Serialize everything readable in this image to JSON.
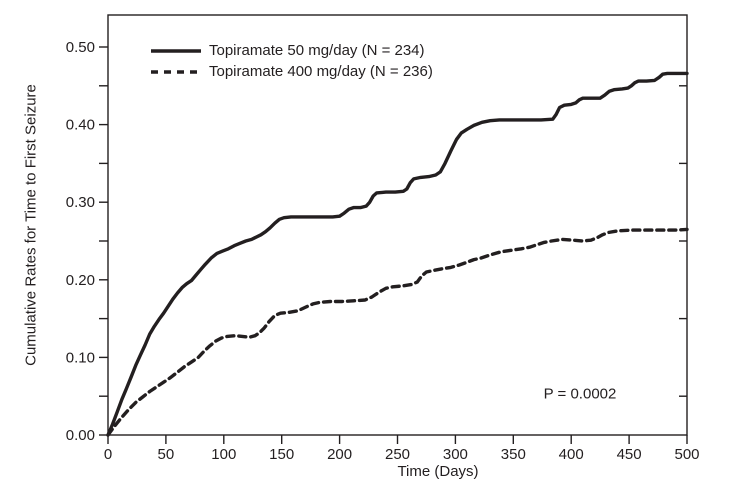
{
  "colors": {
    "ink": "#231f20",
    "background": "#ffffff"
  },
  "annotation": {
    "p_value": "P = 0.0002"
  },
  "chart_data": {
    "type": "line",
    "title": "",
    "xlabel": "Time (Days)",
    "ylabel": "Cumulative Rates for Time to First Seizure",
    "xlim": [
      0,
      500
    ],
    "ylim": [
      0.0,
      0.54
    ],
    "grid": false,
    "frame": true,
    "legend_position": "upper-left-inside",
    "x_ticks": [
      0,
      50,
      100,
      150,
      200,
      250,
      300,
      350,
      400,
      450,
      500
    ],
    "y_ticks_major": [
      0.0,
      0.1,
      0.2,
      0.3,
      0.4,
      0.5
    ],
    "y_ticks_minor": [
      0.05,
      0.15,
      0.25,
      0.35,
      0.45
    ],
    "y_ticks_right": [
      0.05,
      0.15,
      0.25,
      0.35,
      0.45
    ],
    "y_tick_labels": [
      "0.00",
      "0.10",
      "0.20",
      "0.30",
      "0.40",
      "0.50"
    ],
    "annotation": {
      "text": "P = 0.0002",
      "x": 408,
      "y": 0.052
    },
    "series": [
      {
        "name": "Topiramate 50 mg/day (N = 234)",
        "key": "topiramate-50",
        "style": "solid",
        "color": "#231f20",
        "points": [
          [
            0,
            0.0
          ],
          [
            4,
            0.014
          ],
          [
            8,
            0.03
          ],
          [
            12,
            0.046
          ],
          [
            16,
            0.06
          ],
          [
            20,
            0.075
          ],
          [
            24,
            0.09
          ],
          [
            28,
            0.103
          ],
          [
            32,
            0.116
          ],
          [
            36,
            0.13
          ],
          [
            40,
            0.14
          ],
          [
            44,
            0.149
          ],
          [
            48,
            0.157
          ],
          [
            52,
            0.166
          ],
          [
            56,
            0.175
          ],
          [
            60,
            0.183
          ],
          [
            64,
            0.19
          ],
          [
            68,
            0.195
          ],
          [
            72,
            0.199
          ],
          [
            76,
            0.206
          ],
          [
            80,
            0.213
          ],
          [
            84,
            0.22
          ],
          [
            89,
            0.228
          ],
          [
            94,
            0.234
          ],
          [
            99,
            0.237
          ],
          [
            104,
            0.24
          ],
          [
            109,
            0.244
          ],
          [
            114,
            0.247
          ],
          [
            119,
            0.25
          ],
          [
            124,
            0.252
          ],
          [
            128,
            0.255
          ],
          [
            132,
            0.258
          ],
          [
            136,
            0.262
          ],
          [
            140,
            0.267
          ],
          [
            144,
            0.273
          ],
          [
            148,
            0.278
          ],
          [
            152,
            0.28
          ],
          [
            158,
            0.281
          ],
          [
            170,
            0.281
          ],
          [
            182,
            0.281
          ],
          [
            194,
            0.281
          ],
          [
            200,
            0.282
          ],
          [
            204,
            0.286
          ],
          [
            208,
            0.291
          ],
          [
            212,
            0.293
          ],
          [
            218,
            0.293
          ],
          [
            223,
            0.295
          ],
          [
            226,
            0.3
          ],
          [
            229,
            0.308
          ],
          [
            232,
            0.312
          ],
          [
            240,
            0.313
          ],
          [
            248,
            0.313
          ],
          [
            255,
            0.314
          ],
          [
            258,
            0.317
          ],
          [
            261,
            0.325
          ],
          [
            264,
            0.33
          ],
          [
            270,
            0.332
          ],
          [
            277,
            0.333
          ],
          [
            283,
            0.335
          ],
          [
            287,
            0.339
          ],
          [
            291,
            0.35
          ],
          [
            296,
            0.366
          ],
          [
            301,
            0.381
          ],
          [
            305,
            0.389
          ],
          [
            310,
            0.394
          ],
          [
            316,
            0.399
          ],
          [
            323,
            0.403
          ],
          [
            330,
            0.405
          ],
          [
            338,
            0.406
          ],
          [
            350,
            0.406
          ],
          [
            362,
            0.406
          ],
          [
            374,
            0.406
          ],
          [
            384,
            0.407
          ],
          [
            387,
            0.413
          ],
          [
            390,
            0.422
          ],
          [
            394,
            0.425
          ],
          [
            400,
            0.426
          ],
          [
            404,
            0.428
          ],
          [
            407,
            0.432
          ],
          [
            410,
            0.434
          ],
          [
            418,
            0.434
          ],
          [
            425,
            0.434
          ],
          [
            429,
            0.438
          ],
          [
            433,
            0.443
          ],
          [
            437,
            0.445
          ],
          [
            444,
            0.446
          ],
          [
            449,
            0.447
          ],
          [
            452,
            0.45
          ],
          [
            455,
            0.454
          ],
          [
            458,
            0.456
          ],
          [
            465,
            0.456
          ],
          [
            472,
            0.457
          ],
          [
            476,
            0.461
          ],
          [
            479,
            0.465
          ],
          [
            483,
            0.466
          ],
          [
            491,
            0.466
          ],
          [
            500,
            0.466
          ]
        ]
      },
      {
        "name": "Topiramate 400 mg/day (N = 236)",
        "key": "topiramate-400",
        "style": "dashed",
        "color": "#231f20",
        "points": [
          [
            0,
            0.0
          ],
          [
            6,
            0.012
          ],
          [
            12,
            0.023
          ],
          [
            18,
            0.033
          ],
          [
            24,
            0.042
          ],
          [
            30,
            0.049
          ],
          [
            36,
            0.056
          ],
          [
            42,
            0.062
          ],
          [
            48,
            0.068
          ],
          [
            54,
            0.074
          ],
          [
            60,
            0.081
          ],
          [
            66,
            0.088
          ],
          [
            72,
            0.094
          ],
          [
            78,
            0.1
          ],
          [
            83,
            0.108
          ],
          [
            88,
            0.115
          ],
          [
            93,
            0.121
          ],
          [
            98,
            0.125
          ],
          [
            103,
            0.127
          ],
          [
            110,
            0.128
          ],
          [
            116,
            0.127
          ],
          [
            122,
            0.126
          ],
          [
            127,
            0.128
          ],
          [
            131,
            0.132
          ],
          [
            135,
            0.138
          ],
          [
            139,
            0.146
          ],
          [
            144,
            0.154
          ],
          [
            149,
            0.157
          ],
          [
            156,
            0.158
          ],
          [
            164,
            0.16
          ],
          [
            171,
            0.165
          ],
          [
            177,
            0.169
          ],
          [
            183,
            0.171
          ],
          [
            192,
            0.172
          ],
          [
            202,
            0.172
          ],
          [
            212,
            0.173
          ],
          [
            222,
            0.174
          ],
          [
            228,
            0.178
          ],
          [
            234,
            0.184
          ],
          [
            240,
            0.189
          ],
          [
            246,
            0.191
          ],
          [
            254,
            0.192
          ],
          [
            262,
            0.194
          ],
          [
            267,
            0.197
          ],
          [
            271,
            0.205
          ],
          [
            275,
            0.21
          ],
          [
            281,
            0.212
          ],
          [
            288,
            0.214
          ],
          [
            296,
            0.216
          ],
          [
            303,
            0.219
          ],
          [
            309,
            0.222
          ],
          [
            316,
            0.226
          ],
          [
            322,
            0.228
          ],
          [
            330,
            0.232
          ],
          [
            339,
            0.236
          ],
          [
            348,
            0.238
          ],
          [
            357,
            0.24
          ],
          [
            364,
            0.242
          ],
          [
            370,
            0.245
          ],
          [
            376,
            0.248
          ],
          [
            383,
            0.25
          ],
          [
            392,
            0.252
          ],
          [
            402,
            0.251
          ],
          [
            410,
            0.25
          ],
          [
            417,
            0.251
          ],
          [
            422,
            0.254
          ],
          [
            427,
            0.258
          ],
          [
            432,
            0.261
          ],
          [
            440,
            0.263
          ],
          [
            452,
            0.264
          ],
          [
            465,
            0.264
          ],
          [
            478,
            0.264
          ],
          [
            490,
            0.264
          ],
          [
            500,
            0.265
          ]
        ]
      }
    ]
  }
}
